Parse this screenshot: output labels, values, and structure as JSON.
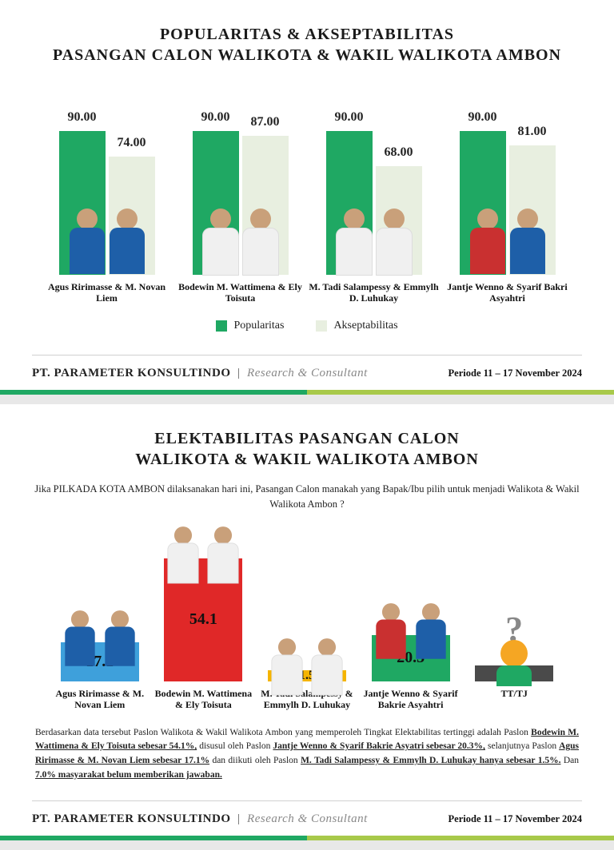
{
  "panel1": {
    "title_line1": "POPULARITAS & AKSEPTABILITAS",
    "title_line2": "PASANGAN CALON WALIKOTA & WAKIL WALIKOTA AMBON",
    "chart": {
      "type": "grouped-bar",
      "ylim": [
        0,
        100
      ],
      "series": [
        {
          "name": "Popularitas",
          "color": "#1fa863"
        },
        {
          "name": "Akseptabilitas",
          "color": "#e8efe0"
        }
      ],
      "label_fontsize": 16,
      "groups": [
        {
          "label": "Agus Ririmasse & M. Novan Liem",
          "values": [
            90.0,
            74.0
          ],
          "outfit": "blue"
        },
        {
          "label": "Bodewin M. Wattimena & Ely Toisuta",
          "values": [
            90.0,
            87.0
          ],
          "outfit": "white"
        },
        {
          "label": "M. Tadi Salampessy & Emmylh D. Luhukay",
          "values": [
            90.0,
            68.0
          ],
          "outfit": "white"
        },
        {
          "label": "Jantje Wenno & Syarif Bakri Asyahtri",
          "values": [
            90.0,
            81.0
          ],
          "outfit": "mixed"
        }
      ]
    },
    "legend": {
      "a": "Popularitas",
      "b": "Akseptabilitas"
    },
    "footer": {
      "company_bold": "PT. PARAMETER KONSULTINDO",
      "company_tag": "Research & Consultant",
      "period": "Periode 11 – 17 November 2024"
    }
  },
  "panel2": {
    "title_line1": "ELEKTABILITAS PASANGAN CALON",
    "title_line2": "WALIKOTA & WAKIL WALIKOTA AMBON",
    "subtitle": "Jika PILKADA KOTA AMBON dilaksanakan hari ini, Pasangan Calon manakah yang Bapak/Ibu pilih untuk menjadi Walikota & Wakil Walikota Ambon ?",
    "chart": {
      "type": "bar",
      "ymax": 60,
      "value_fontsize": 20,
      "items": [
        {
          "label": "Agus Ririmasse & M. Novan Liem",
          "value": 17.1,
          "color": "#3ea0db",
          "outfit": "blue"
        },
        {
          "label": "Bodewin M. Wattimena & Ely Toisuta",
          "value": 54.1,
          "color": "#e02828",
          "outfit": "white"
        },
        {
          "label": "M. Tadi Salampessy & Emmylh D. Luhukay",
          "value": 1.5,
          "color": "#f5b400",
          "outfit": "white"
        },
        {
          "label": "Jantje Wenno & Syarif Bakrie Asyahtri",
          "value": 20.3,
          "color": "#1fa863",
          "outfit": "mixed"
        },
        {
          "label": "TT/TJ",
          "value": 7.0,
          "color": "#4a4a4a",
          "outfit": "question"
        }
      ]
    },
    "summary": {
      "pre": "Berdasarkan data tersebut Paslon Walikota & Wakil Walikota Ambon yang memperoleh Tingkat Elektabilitas tertinggi adalah Paslon ",
      "s1": "Bodewin M. Wattimena & Ely Toisuta sebesar 54.1%,",
      "m1": " disusul oleh Paslon ",
      "s2": "Jantje Wenno & Syarif Bakrie Asyatri sebesar 20.3%,",
      "m2": " selanjutnya Paslon ",
      "s3": "Agus Ririmasse & M. Novan Liem sebesar 17.1%",
      "m3": " dan diikuti oleh Paslon ",
      "s4": "M. Tadi Salampessy & Emmylh D. Luhukay hanya sebesar 1.5%.",
      "m4": " Dan ",
      "s5": "7.0% masyarakat belum memberikan jawaban."
    },
    "footer": {
      "company_bold": "PT. PARAMETER KONSULTINDO",
      "company_tag": "Research & Consultant",
      "period": "Periode 11 – 17 November 2024"
    }
  }
}
